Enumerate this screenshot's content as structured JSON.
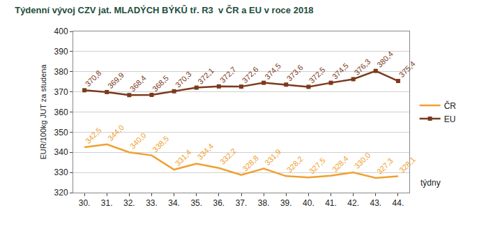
{
  "chart_data": {
    "type": "line",
    "title": "Týdenní vývoj CZV jat. MLADÝCH BÝKÛ tř. R3  v ČR a EU v roce 2018",
    "y_label": "EUR/100kg JUT za studena",
    "x_label": "týdny",
    "categories": [
      "30.",
      "31.",
      "32.",
      "33.",
      "34.",
      "35.",
      "36.",
      "37.",
      "38.",
      "39.",
      "40.",
      "41.",
      "42.",
      "43.",
      "44."
    ],
    "series": [
      {
        "name": "ČR",
        "color": "#f0a030",
        "marker": "none",
        "line_style": "solid",
        "values": [
          342.5,
          344.0,
          340.0,
          338.5,
          331.4,
          334.4,
          332.2,
          328.8,
          331.9,
          328.2,
          327.5,
          328.4,
          330.0,
          327.3,
          328.1
        ],
        "value_labels": [
          "342,5",
          "344,0",
          "340,0",
          "338,5",
          "331,4",
          "334,4",
          "332,2",
          "328,8",
          "331,9",
          "328,2",
          "327,5",
          "328,4",
          "330,0",
          "327,3",
          "328,1"
        ]
      },
      {
        "name": "EU",
        "color": "#7b3a1c",
        "marker": "square",
        "line_style": "solid",
        "values": [
          370.8,
          369.9,
          368.4,
          368.5,
          370.3,
          372.1,
          372.7,
          372.6,
          374.5,
          373.6,
          372.5,
          374.5,
          376.3,
          380.4,
          375.4
        ],
        "value_labels": [
          "370,8",
          "369,9",
          "368,4",
          "368,5",
          "370,3",
          "372,1",
          "372,7",
          "372,6",
          "374,5",
          "373,6",
          "372,5",
          "374,5",
          "376,3",
          "380,4",
          "375,4"
        ]
      }
    ],
    "ylim": [
      320,
      400
    ],
    "yticks": [
      320,
      330,
      340,
      350,
      360,
      370,
      380,
      390,
      400
    ],
    "grid": true,
    "legend": "right",
    "data_labels": true
  }
}
